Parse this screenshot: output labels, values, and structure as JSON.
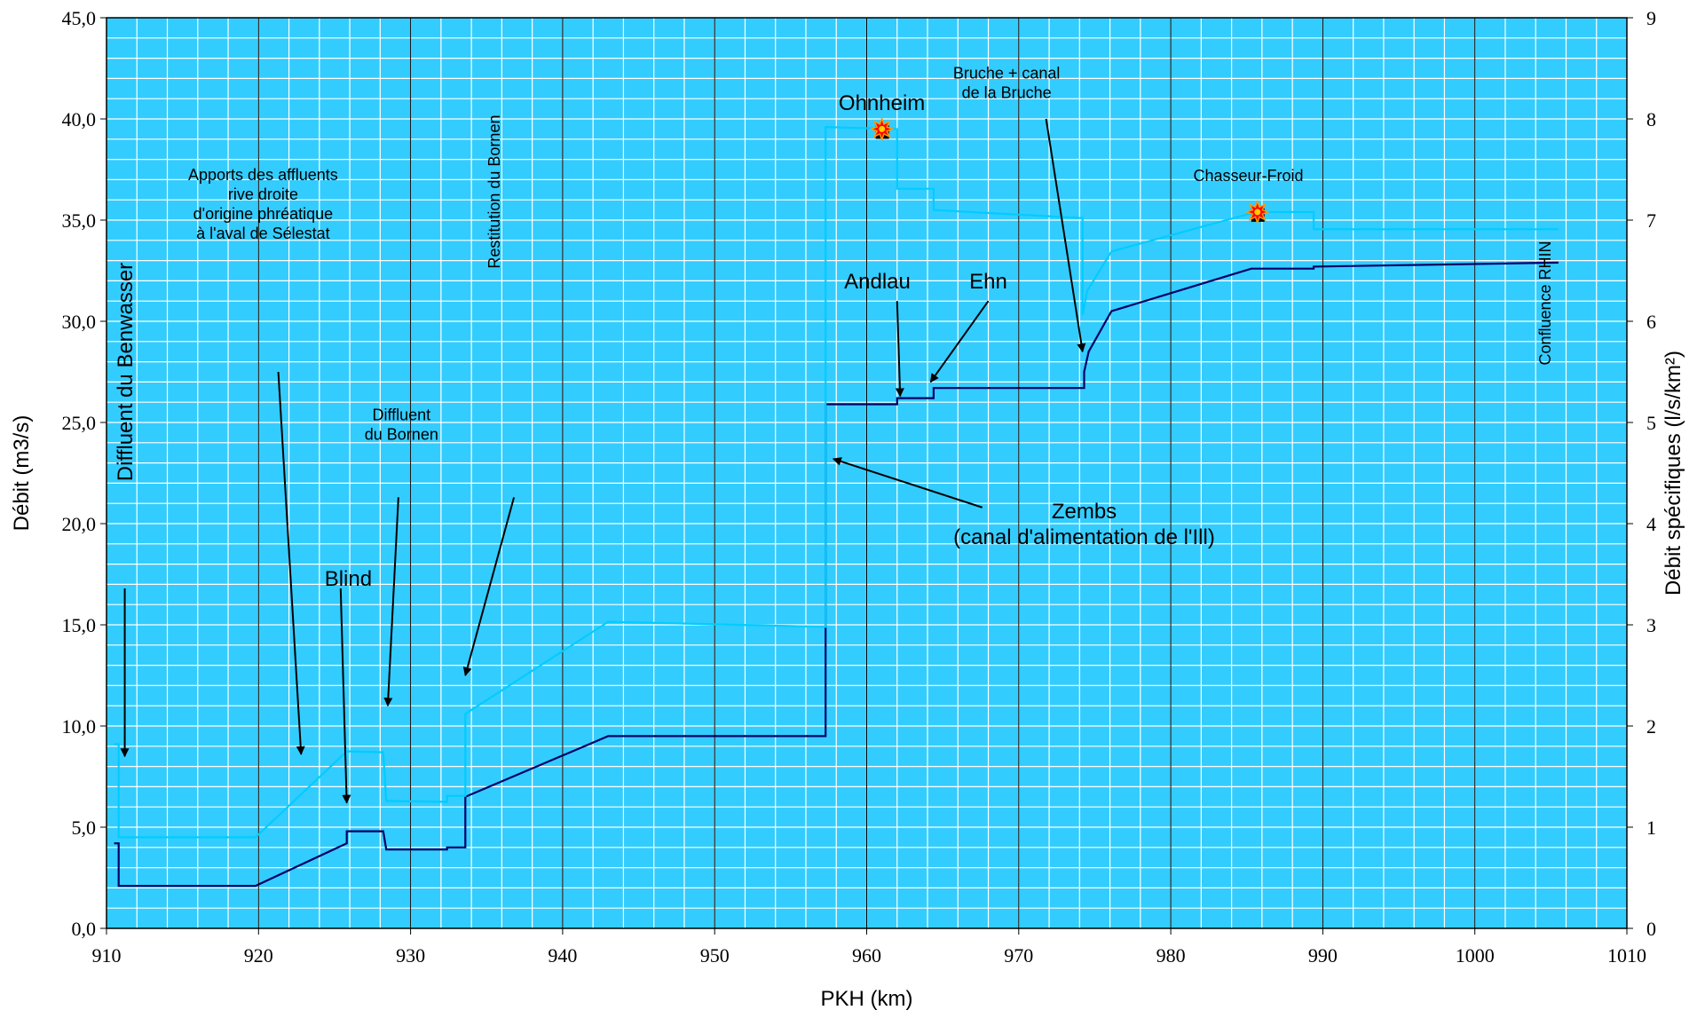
{
  "chart_data": {
    "type": "line",
    "xlabel": "PKH (km)",
    "ylabel": "Débit (m3/s)",
    "y2label": "Débit spécifiques (l/s/km²)",
    "xlim": [
      910,
      1010
    ],
    "ylim": [
      0,
      45
    ],
    "y2lim": [
      0,
      9
    ],
    "grid": true,
    "legend": "none",
    "x_ticks": [
      "910",
      "920",
      "930",
      "940",
      "950",
      "960",
      "970",
      "980",
      "990",
      "1000",
      "1010"
    ],
    "y_ticks": [
      "0,0",
      "5,0",
      "10,0",
      "15,0",
      "20,0",
      "25,0",
      "30,0",
      "35,0",
      "40,0",
      "45,0"
    ],
    "y2_ticks": [
      "0",
      "1",
      "2",
      "3",
      "4",
      "5",
      "6",
      "7",
      "8",
      "9"
    ],
    "colors": {
      "background": "#33ccff",
      "minor_grid": "#ffffff",
      "major_grid": "#000000",
      "series_flow": "#000066",
      "series_specific": "#00ccff"
    },
    "series": [
      {
        "axis": "left",
        "color": "#000066",
        "points": [
          [
            910.5,
            4.2
          ],
          [
            910.8,
            4.2
          ],
          [
            910.8,
            2.1
          ],
          [
            919.8,
            2.1
          ],
          [
            925.8,
            4.2
          ],
          [
            925.8,
            4.8
          ],
          [
            928.2,
            4.8
          ],
          [
            928.4,
            3.9
          ],
          [
            932.4,
            3.9
          ],
          [
            932.4,
            4.0
          ],
          [
            933.6,
            4.0
          ],
          [
            933.6,
            6.5
          ],
          [
            943,
            9.5
          ],
          [
            957.3,
            9.5
          ],
          [
            957.3,
            25.9
          ],
          [
            962,
            25.9
          ],
          [
            962,
            26.2
          ],
          [
            964.4,
            26.2
          ],
          [
            964.4,
            26.7
          ],
          [
            974.3,
            26.7
          ],
          [
            974.3,
            27.5
          ],
          [
            974.6,
            28.5
          ],
          [
            976.1,
            30.5
          ],
          [
            985.3,
            32.6
          ],
          [
            989.4,
            32.6
          ],
          [
            989.4,
            32.7
          ],
          [
            1005.5,
            32.9
          ]
        ]
      },
      {
        "axis": "right",
        "color": "#00ccff",
        "points": [
          [
            910.5,
            1.82
          ],
          [
            910.8,
            1.82
          ],
          [
            910.8,
            0.9
          ],
          [
            919.8,
            0.9
          ],
          [
            925.8,
            1.75
          ],
          [
            928.2,
            1.74
          ],
          [
            928.4,
            1.26
          ],
          [
            932.4,
            1.25
          ],
          [
            932.4,
            1.31
          ],
          [
            933.6,
            1.31
          ],
          [
            933.6,
            2.12
          ],
          [
            943,
            3.03
          ],
          [
            957.3,
            2.98
          ],
          [
            957.3,
            7.92
          ],
          [
            962,
            7.9
          ],
          [
            962,
            7.31
          ],
          [
            964.4,
            7.31
          ],
          [
            964.4,
            7.1
          ],
          [
            974.2,
            7.02
          ],
          [
            974.2,
            6.06
          ],
          [
            974.5,
            6.3
          ],
          [
            976.1,
            6.69
          ],
          [
            985.6,
            7.08
          ],
          [
            989.4,
            7.08
          ],
          [
            989.4,
            6.91
          ],
          [
            1005.5,
            6.91
          ]
        ]
      }
    ],
    "markers": [
      {
        "x": 961,
        "y": 7.9,
        "axis": "right",
        "symbol": "star"
      },
      {
        "x": 985.7,
        "y": 7.08,
        "axis": "right",
        "symbol": "star"
      }
    ],
    "annotations": [
      {
        "name": "diffluent-benwasser",
        "lines": [
          "Diffluent du Benwasser"
        ],
        "anchor": [
          911.2,
          27.5
        ],
        "size": 24,
        "rotate": -90,
        "arrow": [
          [
            911.2,
            16.8
          ],
          [
            911.2,
            8.5
          ]
        ]
      },
      {
        "name": "apports-affluents",
        "lines": [
          "Apports des affluents",
          "rive droite",
          "d'origine phréatique",
          "à l'aval de Sélestat"
        ],
        "anchor": [
          920.3,
          35.8
        ],
        "size": 18,
        "rotate": 0,
        "arrow": [
          [
            921.3,
            27.5
          ],
          [
            922.8,
            8.6
          ]
        ]
      },
      {
        "name": "blind",
        "lines": [
          "Blind"
        ],
        "anchor": [
          925.9,
          17.3
        ],
        "size": 24,
        "rotate": 0,
        "arrow": [
          [
            925.4,
            16.8
          ],
          [
            925.8,
            6.2
          ]
        ]
      },
      {
        "name": "diffluent-bornen",
        "lines": [
          "Diffluent",
          "du Bornen"
        ],
        "anchor": [
          929.4,
          24.9
        ],
        "size": 18,
        "rotate": 0,
        "arrow": [
          [
            929.2,
            21.3
          ],
          [
            928.5,
            11.0
          ]
        ]
      },
      {
        "name": "restitution-bornen",
        "lines": [
          "Restitution du Bornen"
        ],
        "anchor": [
          935.5,
          36.4
        ],
        "size": 18,
        "rotate": -90,
        "arrow": [
          [
            936.8,
            21.3
          ],
          [
            933.6,
            12.5
          ]
        ]
      },
      {
        "name": "ohnheim",
        "lines": [
          "Ohnheim"
        ],
        "anchor": [
          961.0,
          40.8
        ],
        "size": 24,
        "rotate": 0,
        "arrow": null
      },
      {
        "name": "bruche",
        "lines": [
          "Bruche + canal",
          "de la Bruche"
        ],
        "anchor": [
          969.2,
          41.8
        ],
        "size": 18,
        "rotate": 0,
        "arrow": [
          [
            971.8,
            40.0
          ],
          [
            974.2,
            28.5
          ]
        ]
      },
      {
        "name": "chasseur-froid",
        "lines": [
          "Chasseur-Froid"
        ],
        "anchor": [
          985.1,
          37.2
        ],
        "size": 18,
        "rotate": 0,
        "arrow": null
      },
      {
        "name": "confluence-rhin",
        "lines": [
          "Confluence RHIN"
        ],
        "anchor": [
          1004.6,
          30.9
        ],
        "size": 18,
        "rotate": -90,
        "arrow": null
      },
      {
        "name": "andlau",
        "lines": [
          "Andlau"
        ],
        "anchor": [
          960.7,
          32.0
        ],
        "size": 24,
        "rotate": 0,
        "arrow": [
          [
            962.0,
            31.0
          ],
          [
            962.2,
            26.3
          ]
        ]
      },
      {
        "name": "ehn",
        "lines": [
          "Ehn"
        ],
        "anchor": [
          968.0,
          32.0
        ],
        "size": 24,
        "rotate": 0,
        "arrow": [
          [
            968.0,
            31.0
          ],
          [
            964.2,
            27.0
          ]
        ]
      },
      {
        "name": "zembs",
        "lines": [
          "Zembs",
          "(canal d'alimentation de l'Ill)"
        ],
        "anchor": [
          974.3,
          20.0
        ],
        "size": 24,
        "rotate": 0,
        "arrow": [
          [
            967.6,
            20.8
          ],
          [
            957.8,
            23.2
          ]
        ]
      }
    ]
  }
}
